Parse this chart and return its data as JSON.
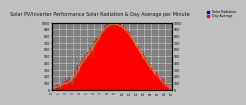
{
  "title": "Solar PV/Inverter Performance Solar Radiation & Day Average per Minute",
  "title_fontsize": 3.5,
  "bg_color": "#c0c0c0",
  "plot_bg_color": "#808080",
  "grid_color": "#ffffff",
  "grid_style": "--",
  "fill_color": "#ff0000",
  "line_color": "#dd0000",
  "avg_line_color": "#ff8800",
  "legend_label_rad": "Solar Radiation",
  "legend_label_avg": "Day Average",
  "legend_color_rad": "#0000ff",
  "legend_color_avg": "#ff0000",
  "ylim_max": 1000,
  "yticks": [
    0,
    100,
    200,
    300,
    400,
    500,
    600,
    700,
    800,
    900,
    1000
  ],
  "num_points": 200,
  "x_tick_count": 18
}
